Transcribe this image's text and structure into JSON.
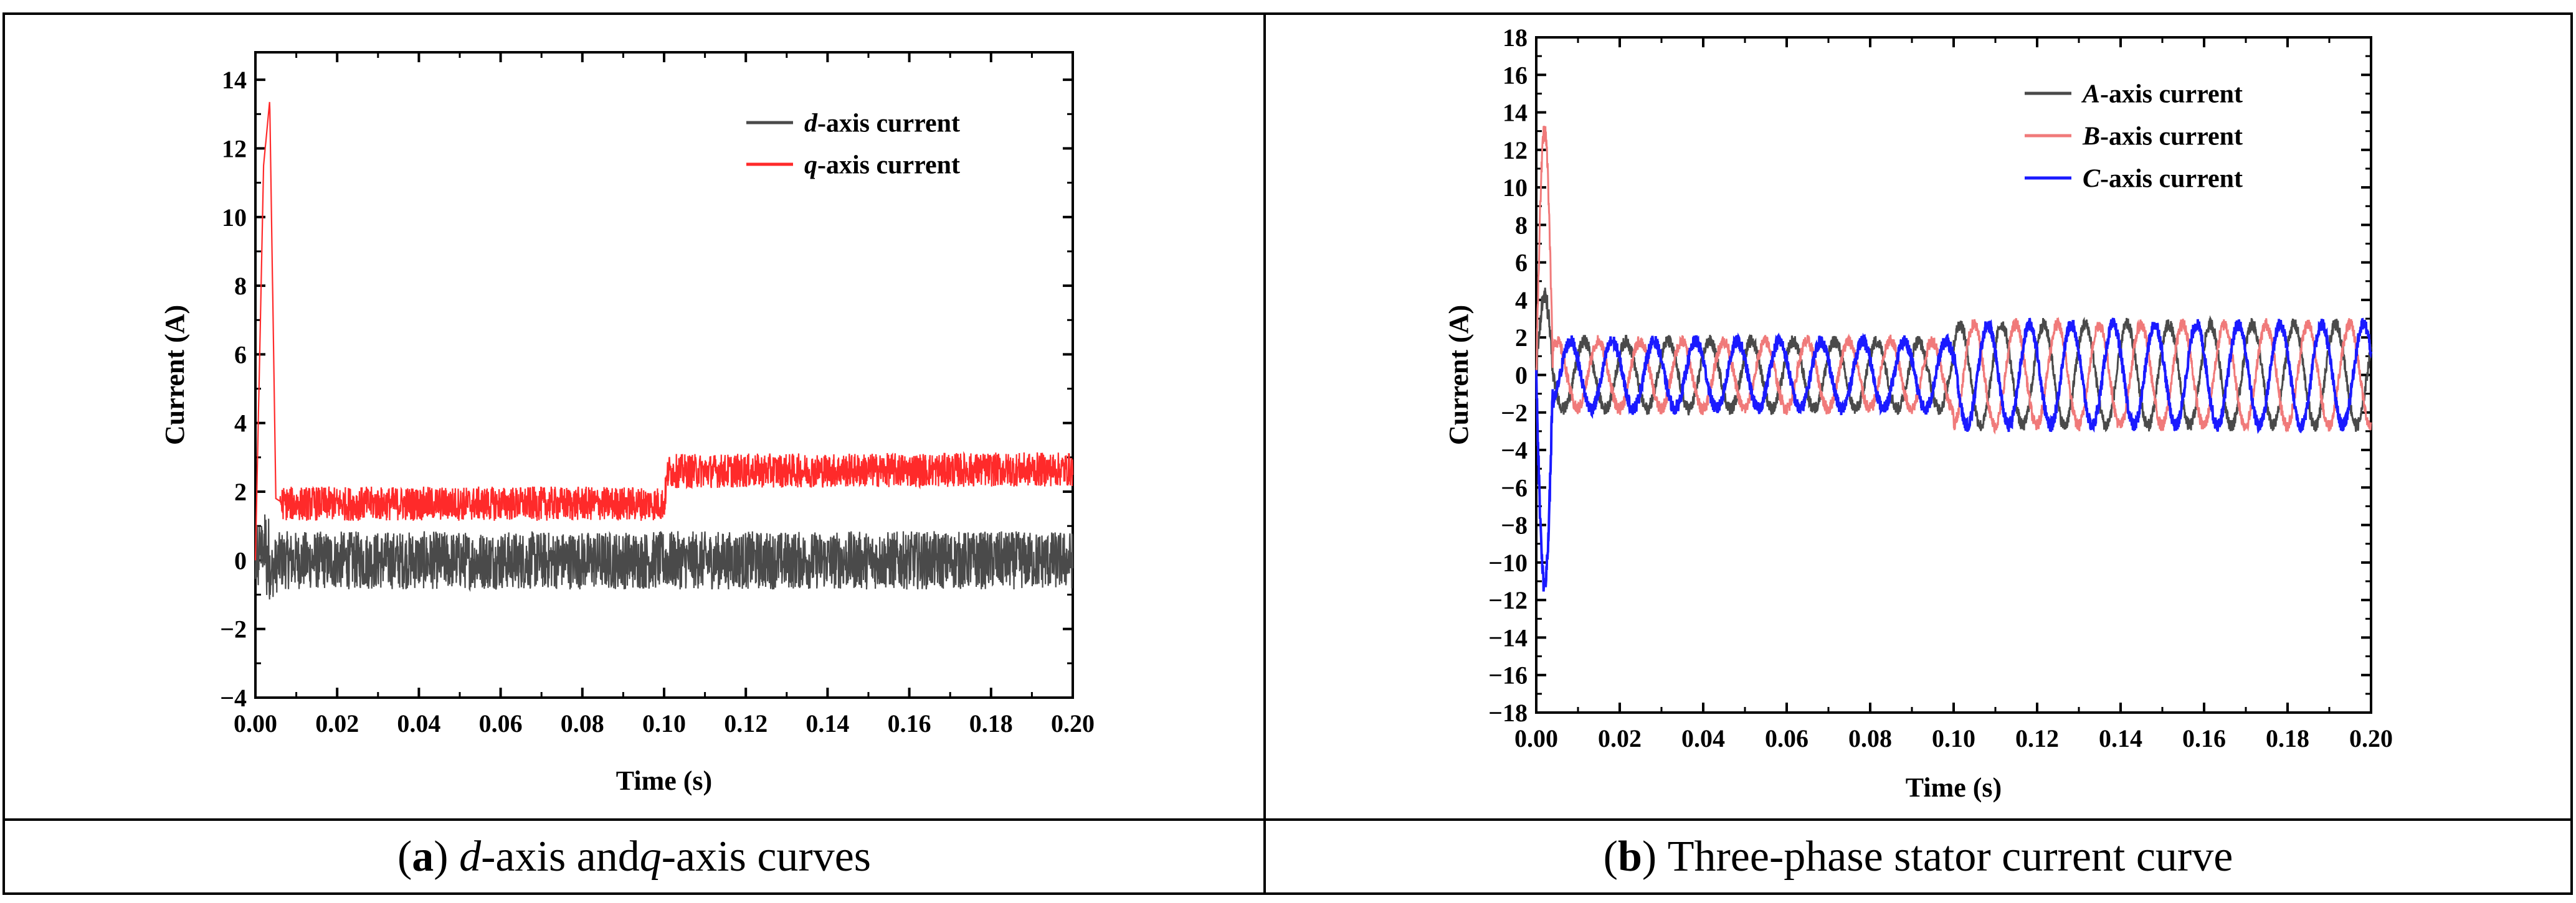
{
  "figure": {
    "caption_a": {
      "letter": "a",
      "part1": "d",
      "part2": "-axis and ",
      "part3": "q",
      "part4": "-axis curves"
    },
    "caption_b": {
      "letter": "b",
      "text": "Three-phase stator current curve"
    }
  },
  "chart_data": [
    {
      "type": "line",
      "id": "a",
      "title": "",
      "xlabel": "Time (s)",
      "ylabel": "Current  (A)",
      "xlim": [
        0,
        0.2
      ],
      "ylim": [
        -4,
        14.8
      ],
      "xticks": [
        "0.00",
        "0.02",
        "0.04",
        "0.06",
        "0.08",
        "0.10",
        "0.12",
        "0.14",
        "0.16",
        "0.18",
        "0.20"
      ],
      "yticks": [
        "−4",
        "−2",
        "0",
        "2",
        "4",
        "6",
        "8",
        "10",
        "12",
        "14"
      ],
      "grid": false,
      "legend_position": "top-right",
      "series": [
        {
          "name": "d-axis current",
          "name_italic": "d",
          "name_rest": "-axis current",
          "color": "#4a4a4a",
          "x": [
            0.0,
            0.002,
            0.004,
            0.006,
            0.1,
            0.101,
            0.2
          ],
          "y_mean": [
            0,
            0.4,
            -0.3,
            0.0,
            0.0,
            0.0,
            0.0
          ],
          "noise_band": 0.85
        },
        {
          "name": "q-axis current",
          "name_italic": "q",
          "name_rest": "-axis current",
          "color": "#ff2a2a",
          "x": [
            0.0,
            0.002,
            0.0035,
            0.005,
            0.007,
            0.1,
            0.101,
            0.2
          ],
          "y_mean": [
            0,
            11.5,
            13.4,
            1.8,
            1.65,
            1.65,
            2.6,
            2.65
          ],
          "noise_band": 0.5
        }
      ]
    },
    {
      "type": "line",
      "id": "b",
      "title": "",
      "xlabel": "Time (s)",
      "ylabel": "Current (A)",
      "xlim": [
        0,
        0.2
      ],
      "ylim": [
        -18,
        18
      ],
      "xticks": [
        "0.00",
        "0.02",
        "0.04",
        "0.06",
        "0.08",
        "0.10",
        "0.12",
        "0.14",
        "0.16",
        "0.18",
        "0.20"
      ],
      "yticks": [
        "−18",
        "−16",
        "−14",
        "−12",
        "−10",
        "−8",
        "−6",
        "−4",
        "−2",
        "0",
        "2",
        "4",
        "6",
        "8",
        "10",
        "12",
        "14",
        "16",
        "18"
      ],
      "grid": false,
      "legend_position": "top-right",
      "series": [
        {
          "name": "A-axis current",
          "name_italic": "A",
          "name_rest": "-axis current",
          "color": "#4a4a4a",
          "amplitude_0_to_0.1": 1.8,
          "amplitude_0.1_to_0.2": 2.7,
          "phase_deg": 0,
          "transient_peak": 4.2
        },
        {
          "name": "B-axis current",
          "name_italic": "B",
          "name_rest": "-axis current",
          "color": "#f07a7a",
          "amplitude_0_to_0.1": 1.8,
          "amplitude_0.1_to_0.2": 2.7,
          "phase_deg": -120,
          "transient_peak": 13.0
        },
        {
          "name": "C-axis current",
          "name_italic": "C",
          "name_rest": "-axis current",
          "color": "#1a1aff",
          "amplitude_0_to_0.1": 1.8,
          "amplitude_0.1_to_0.2": 2.7,
          "phase_deg": 120,
          "transient_peak": -11.2
        }
      ],
      "frequency_hz": 100
    }
  ]
}
